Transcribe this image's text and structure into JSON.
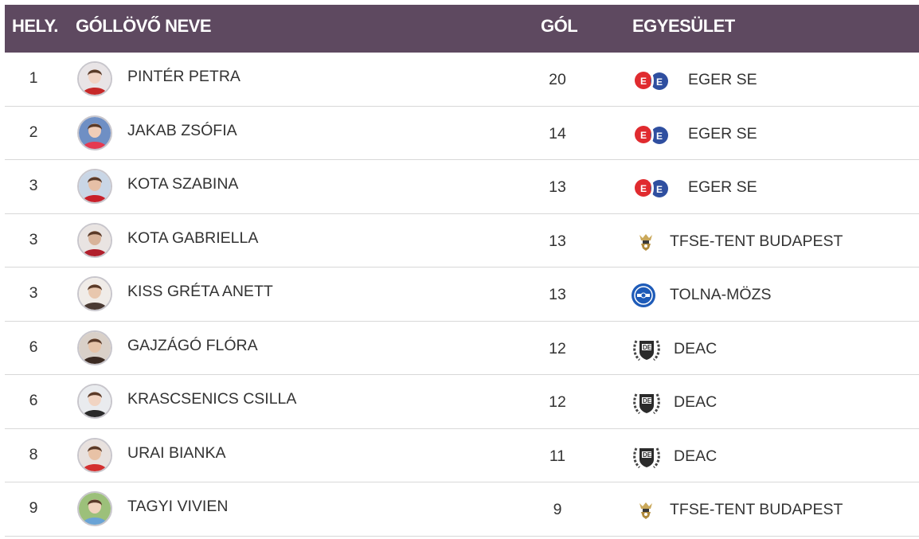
{
  "header": {
    "rank": "HELY.",
    "name": "GÓLLÖVŐ NEVE",
    "goals": "GÓL",
    "club": "EGYESÜLET"
  },
  "colors": {
    "header_bg": "#5e4960",
    "header_text": "#ffffff",
    "row_text": "#333333",
    "divider": "#d8d8d8"
  },
  "rows": [
    {
      "rank": "1",
      "name": "PINTÉR PETRA",
      "goals": "20",
      "club": "EGER SE",
      "club_icon": "eger-se-logo-icon",
      "avatar": "player-photo-icon"
    },
    {
      "rank": "2",
      "name": "JAKAB ZSÓFIA",
      "goals": "14",
      "club": "EGER SE",
      "club_icon": "eger-se-logo-icon",
      "avatar": "player-photo-icon"
    },
    {
      "rank": "3",
      "name": "KOTA SZABINA",
      "goals": "13",
      "club": "EGER SE",
      "club_icon": "eger-se-logo-icon",
      "avatar": "player-photo-icon"
    },
    {
      "rank": "3",
      "name": "KOTA GABRIELLA",
      "goals": "13",
      "club": "TFSE-TENT BUDAPEST",
      "club_icon": "tfse-logo-icon",
      "avatar": "player-photo-icon"
    },
    {
      "rank": "3",
      "name": "KISS GRÉTA ANETT",
      "goals": "13",
      "club": "TOLNA-MÖZS",
      "club_icon": "tolna-mozs-logo-icon",
      "avatar": "player-photo-icon"
    },
    {
      "rank": "6",
      "name": "GAJZÁGÓ FLÓRA",
      "goals": "12",
      "club": "DEAC",
      "club_icon": "deac-logo-icon",
      "avatar": "player-photo-icon"
    },
    {
      "rank": "6",
      "name": "KRASCSENICS CSILLA",
      "goals": "12",
      "club": "DEAC",
      "club_icon": "deac-logo-icon",
      "avatar": "player-photo-icon"
    },
    {
      "rank": "8",
      "name": "URAI BIANKA",
      "goals": "11",
      "club": "DEAC",
      "club_icon": "deac-logo-icon",
      "avatar": "player-photo-icon"
    },
    {
      "rank": "9",
      "name": "TAGYI VIVIEN",
      "goals": "9",
      "club": "TFSE-TENT BUDAPEST",
      "club_icon": "tfse-logo-icon",
      "avatar": "player-photo-icon"
    }
  ]
}
